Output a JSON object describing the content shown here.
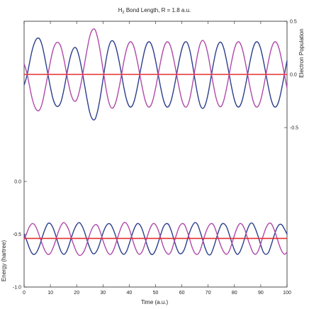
{
  "chart_data": {
    "type": "line",
    "title_parts": {
      "prefix": "H",
      "subscript": "2",
      "suffix": " Bond Length, R = 1.8 a.u."
    },
    "xlabel": "Time (a.u.)",
    "ylabel_left": "Energy (hartree)",
    "ylabel_right": "Electron Population",
    "xlim": [
      0,
      100
    ],
    "x_ticks": [
      0,
      10,
      20,
      30,
      40,
      50,
      60,
      70,
      80,
      90,
      100
    ],
    "x_tick_labels": [
      "0",
      "10",
      "20",
      "30",
      "40",
      "50",
      "60",
      "70",
      "80",
      "90",
      "100"
    ],
    "ylim_left": [
      -1.0,
      0.0
    ],
    "y_left_tick_labels": [
      "0.0",
      "-0.5",
      "-1.0"
    ],
    "y_left_ticks": [
      0.0,
      -0.5,
      -1.0
    ],
    "ylim_right": [
      -0.5,
      0.5
    ],
    "y_right_tick_labels": [
      "0.5",
      "0.0",
      "-0.5"
    ],
    "y_right_ticks": [
      0.5,
      0.0,
      -0.5
    ],
    "grid": false,
    "panels": [
      {
        "panel": "upper",
        "axis": "right",
        "series": [
          {
            "color": "#2c3e8c",
            "x": [
              0,
              1,
              2,
              3,
              4,
              5,
              6,
              7,
              8,
              9,
              10,
              11,
              12,
              13,
              14,
              15,
              16,
              17,
              18,
              19,
              20,
              21,
              22,
              23,
              24,
              25,
              26,
              27,
              28,
              29,
              30,
              31,
              32,
              33,
              34,
              35,
              36,
              37,
              38,
              39,
              40,
              41,
              42,
              43,
              44,
              45,
              46,
              47,
              48,
              49,
              50,
              51,
              52,
              53,
              54,
              55,
              56,
              57,
              58,
              59,
              60,
              61,
              62,
              63,
              64,
              65,
              66,
              67,
              68,
              69,
              70,
              71,
              72,
              73,
              74,
              75,
              76,
              77,
              78,
              79,
              80,
              81,
              82,
              83,
              84,
              85,
              86,
              87,
              88,
              89,
              90,
              91,
              92,
              93,
              94,
              95,
              96,
              97,
              98,
              99,
              100
            ],
            "y": [
              -0.1,
              -0.02,
              0.1,
              0.22,
              0.3,
              0.34,
              0.33,
              0.26,
              0.14,
              0.01,
              -0.12,
              -0.23,
              -0.29,
              -0.3,
              -0.26,
              -0.16,
              -0.03,
              0.1,
              0.2,
              0.25,
              0.24,
              0.16,
              0.04,
              -0.1,
              -0.24,
              -0.36,
              -0.42,
              -0.42,
              -0.34,
              -0.21,
              -0.05,
              0.11,
              0.24,
              0.31,
              0.31,
              0.25,
              0.14,
              0.01,
              -0.13,
              -0.24,
              -0.3,
              -0.3,
              -0.24,
              -0.13,
              0.0,
              0.13,
              0.24,
              0.3,
              0.3,
              0.24,
              0.13,
              0.0,
              -0.13,
              -0.24,
              -0.3,
              -0.3,
              -0.24,
              -0.13,
              0.0,
              0.13,
              0.24,
              0.3,
              0.3,
              0.23,
              0.1,
              -0.05,
              -0.19,
              -0.29,
              -0.32,
              -0.28,
              -0.18,
              -0.04,
              0.1,
              0.22,
              0.29,
              0.3,
              0.24,
              0.13,
              0.0,
              -0.13,
              -0.24,
              -0.3,
              -0.3,
              -0.24,
              -0.13,
              0.0,
              0.13,
              0.24,
              0.3,
              0.3,
              0.24,
              0.13,
              0.0,
              -0.13,
              -0.24,
              -0.3,
              -0.3,
              -0.24,
              -0.13,
              0.0,
              0.13
            ]
          },
          {
            "color": "#b04aa8",
            "x": [
              0,
              1,
              2,
              3,
              4,
              5,
              6,
              7,
              8,
              9,
              10,
              11,
              12,
              13,
              14,
              15,
              16,
              17,
              18,
              19,
              20,
              21,
              22,
              23,
              24,
              25,
              26,
              27,
              28,
              29,
              30,
              31,
              32,
              33,
              34,
              35,
              36,
              37,
              38,
              39,
              40,
              41,
              42,
              43,
              44,
              45,
              46,
              47,
              48,
              49,
              50,
              51,
              52,
              53,
              54,
              55,
              56,
              57,
              58,
              59,
              60,
              61,
              62,
              63,
              64,
              65,
              66,
              67,
              68,
              69,
              70,
              71,
              72,
              73,
              74,
              75,
              76,
              77,
              78,
              79,
              80,
              81,
              82,
              83,
              84,
              85,
              86,
              87,
              88,
              89,
              90,
              91,
              92,
              93,
              94,
              95,
              96,
              97,
              98,
              99,
              100
            ],
            "y": [
              0.1,
              0.02,
              -0.1,
              -0.22,
              -0.3,
              -0.34,
              -0.33,
              -0.26,
              -0.14,
              -0.01,
              0.12,
              0.23,
              0.29,
              0.3,
              0.26,
              0.16,
              0.03,
              -0.1,
              -0.2,
              -0.25,
              -0.24,
              -0.16,
              -0.04,
              0.1,
              0.24,
              0.36,
              0.42,
              0.42,
              0.34,
              0.21,
              0.05,
              -0.11,
              -0.24,
              -0.31,
              -0.31,
              -0.25,
              -0.14,
              -0.01,
              0.13,
              0.24,
              0.3,
              0.3,
              0.24,
              0.13,
              0.0,
              -0.13,
              -0.24,
              -0.3,
              -0.3,
              -0.24,
              -0.13,
              0.0,
              0.13,
              0.24,
              0.3,
              0.3,
              0.24,
              0.13,
              0.0,
              -0.13,
              -0.24,
              -0.3,
              -0.3,
              -0.23,
              -0.1,
              0.05,
              0.19,
              0.29,
              0.32,
              0.28,
              0.18,
              0.04,
              -0.1,
              -0.22,
              -0.29,
              -0.3,
              -0.24,
              -0.13,
              0.0,
              0.13,
              0.24,
              0.3,
              0.3,
              0.24,
              0.13,
              0.0,
              -0.13,
              -0.24,
              -0.3,
              -0.3,
              -0.24,
              -0.13,
              0.0,
              0.13,
              0.24,
              0.3,
              0.3,
              0.24,
              0.13,
              0.0,
              -0.13
            ]
          },
          {
            "color": "#e03030",
            "x": [
              0,
              100
            ],
            "y": [
              0.0,
              0.0
            ]
          }
        ]
      },
      {
        "panel": "lower",
        "axis": "left",
        "series": [
          {
            "color": "#2c3e8c",
            "x": [
              0,
              1,
              2,
              3,
              4,
              5,
              6,
              7,
              8,
              9,
              10,
              11,
              12,
              13,
              14,
              15,
              16,
              17,
              18,
              19,
              20,
              21,
              22,
              23,
              24,
              25,
              26,
              27,
              28,
              29,
              30,
              31,
              32,
              33,
              34,
              35,
              36,
              37,
              38,
              39,
              40,
              41,
              42,
              43,
              44,
              45,
              46,
              47,
              48,
              49,
              50,
              51,
              52,
              53,
              54,
              55,
              56,
              57,
              58,
              59,
              60,
              61,
              62,
              63,
              64,
              65,
              66,
              67,
              68,
              69,
              70,
              71,
              72,
              73,
              74,
              75,
              76,
              77,
              78,
              79,
              80,
              81,
              82,
              83,
              84,
              85,
              86,
              87,
              88,
              89,
              90,
              91,
              92,
              93,
              94,
              95,
              96,
              97,
              98,
              99,
              100
            ],
            "y": [
              -0.5,
              -0.56,
              -0.63,
              -0.68,
              -0.69,
              -0.66,
              -0.6,
              -0.52,
              -0.45,
              -0.4,
              -0.4,
              -0.44,
              -0.51,
              -0.59,
              -0.66,
              -0.69,
              -0.67,
              -0.61,
              -0.53,
              -0.46,
              -0.41,
              -0.39,
              -0.42,
              -0.48,
              -0.56,
              -0.63,
              -0.68,
              -0.68,
              -0.64,
              -0.57,
              -0.49,
              -0.43,
              -0.4,
              -0.41,
              -0.46,
              -0.53,
              -0.61,
              -0.67,
              -0.69,
              -0.66,
              -0.59,
              -0.51,
              -0.44,
              -0.4,
              -0.41,
              -0.46,
              -0.54,
              -0.62,
              -0.68,
              -0.69,
              -0.65,
              -0.58,
              -0.5,
              -0.43,
              -0.4,
              -0.41,
              -0.47,
              -0.55,
              -0.63,
              -0.68,
              -0.68,
              -0.64,
              -0.56,
              -0.48,
              -0.42,
              -0.39,
              -0.41,
              -0.48,
              -0.56,
              -0.64,
              -0.69,
              -0.69,
              -0.63,
              -0.55,
              -0.47,
              -0.41,
              -0.4,
              -0.43,
              -0.5,
              -0.58,
              -0.65,
              -0.69,
              -0.67,
              -0.61,
              -0.53,
              -0.45,
              -0.4,
              -0.4,
              -0.45,
              -0.52,
              -0.6,
              -0.67,
              -0.69,
              -0.67,
              -0.6,
              -0.52,
              -0.45,
              -0.41,
              -0.41,
              -0.45,
              -0.5
            ]
          },
          {
            "color": "#b04aa8",
            "x": [
              0,
              1,
              2,
              3,
              4,
              5,
              6,
              7,
              8,
              9,
              10,
              11,
              12,
              13,
              14,
              15,
              16,
              17,
              18,
              19,
              20,
              21,
              22,
              23,
              24,
              25,
              26,
              27,
              28,
              29,
              30,
              31,
              32,
              33,
              34,
              35,
              36,
              37,
              38,
              39,
              40,
              41,
              42,
              43,
              44,
              45,
              46,
              47,
              48,
              49,
              50,
              51,
              52,
              53,
              54,
              55,
              56,
              57,
              58,
              59,
              60,
              61,
              62,
              63,
              64,
              65,
              66,
              67,
              68,
              69,
              70,
              71,
              72,
              73,
              74,
              75,
              76,
              77,
              78,
              79,
              80,
              81,
              82,
              83,
              84,
              85,
              86,
              87,
              88,
              89,
              90,
              91,
              92,
              93,
              94,
              95,
              96,
              97,
              98,
              99,
              100
            ],
            "y": [
              -0.55,
              -0.49,
              -0.43,
              -0.4,
              -0.41,
              -0.46,
              -0.53,
              -0.6,
              -0.66,
              -0.69,
              -0.68,
              -0.63,
              -0.56,
              -0.48,
              -0.42,
              -0.39,
              -0.41,
              -0.46,
              -0.54,
              -0.61,
              -0.67,
              -0.7,
              -0.69,
              -0.65,
              -0.58,
              -0.5,
              -0.44,
              -0.41,
              -0.42,
              -0.48,
              -0.56,
              -0.63,
              -0.68,
              -0.69,
              -0.65,
              -0.58,
              -0.5,
              -0.43,
              -0.39,
              -0.4,
              -0.45,
              -0.53,
              -0.61,
              -0.67,
              -0.69,
              -0.66,
              -0.59,
              -0.51,
              -0.44,
              -0.4,
              -0.41,
              -0.46,
              -0.54,
              -0.62,
              -0.67,
              -0.69,
              -0.66,
              -0.58,
              -0.5,
              -0.43,
              -0.4,
              -0.41,
              -0.47,
              -0.55,
              -0.63,
              -0.68,
              -0.69,
              -0.65,
              -0.57,
              -0.49,
              -0.43,
              -0.4,
              -0.41,
              -0.47,
              -0.55,
              -0.62,
              -0.67,
              -0.69,
              -0.66,
              -0.59,
              -0.51,
              -0.44,
              -0.4,
              -0.41,
              -0.46,
              -0.54,
              -0.61,
              -0.67,
              -0.69,
              -0.66,
              -0.59,
              -0.51,
              -0.44,
              -0.4,
              -0.4,
              -0.45,
              -0.52,
              -0.6,
              -0.66,
              -0.69,
              -0.67
            ]
          },
          {
            "color": "#e03030",
            "x": [
              0,
              100
            ],
            "y": [
              -0.54,
              -0.54
            ]
          }
        ]
      }
    ]
  }
}
